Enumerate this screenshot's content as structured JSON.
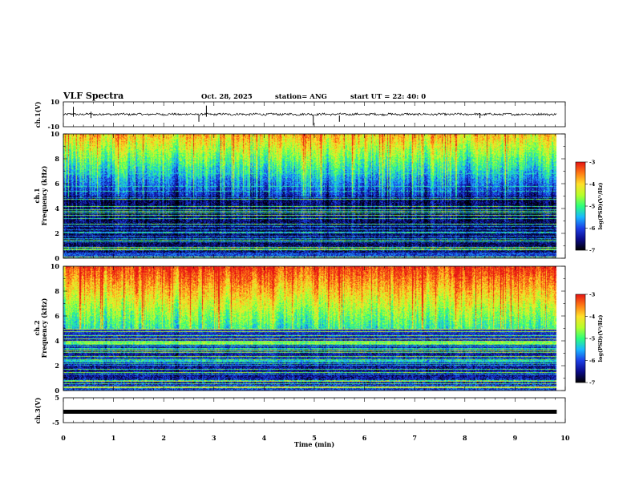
{
  "header": {
    "title": "VLF Spectra",
    "date": "Oct. 28, 2025",
    "station": "station= ANG",
    "start": "start  UT  =   22: 40: 0"
  },
  "chart_data": {
    "type": "heatmap",
    "x": {
      "label": "Time  (min)",
      "range": [
        0,
        10
      ],
      "ticks": [
        "0",
        "1",
        "2",
        "3",
        "4",
        "5",
        "6",
        "7",
        "8",
        "9",
        "10"
      ],
      "data_end": 9.83
    },
    "panels": [
      {
        "id": "ch1-waveform",
        "type": "line",
        "ylabel": "ch.1(V)",
        "ylim": [
          -10,
          10
        ],
        "ytick_labels": {
          "top": "10",
          "bottom": "-10"
        },
        "baseline": 0,
        "color": "#000000"
      },
      {
        "id": "ch1-spectrogram",
        "type": "heatmap",
        "ylabel": "ch.1\nFrequency (kHz)",
        "ylim": [
          0,
          10
        ],
        "ytick_labels": [
          "0",
          "2",
          "4",
          "6",
          "8",
          "10"
        ],
        "intensity": "moderate",
        "colorbar": {
          "label": "log(PSD)(V²/Hz)",
          "range": [
            -7,
            -3
          ],
          "tick_labels": [
            "-3",
            "-4",
            "-5",
            "-6",
            "-7"
          ]
        }
      },
      {
        "id": "ch2-spectrogram",
        "type": "heatmap",
        "ylabel": "ch.2\nFrequency (kHz)",
        "ylim": [
          0,
          10
        ],
        "ytick_labels": [
          "0",
          "2",
          "4",
          "6",
          "8",
          "10"
        ],
        "intensity": "high",
        "colorbar": {
          "label": "log(PSD)(V²/Hz)",
          "range": [
            -7,
            -3
          ],
          "tick_labels": [
            "-3",
            "-4",
            "-5",
            "-6",
            "-7"
          ]
        }
      },
      {
        "id": "ch3-waveform",
        "type": "line",
        "ylabel": "ch.3(V)",
        "ylim": [
          -5,
          5
        ],
        "ytick_labels": {
          "top": "5",
          "bottom": "-5"
        },
        "baseline": -0.6,
        "color": "#000000"
      }
    ],
    "colormap": [
      "#000000",
      "#0b0b8a",
      "#1d3fe6",
      "#19b7ff",
      "#2dff7a",
      "#b6ff2a",
      "#ffe02a",
      "#ff7a14",
      "#e61414",
      "#ffffff"
    ]
  }
}
